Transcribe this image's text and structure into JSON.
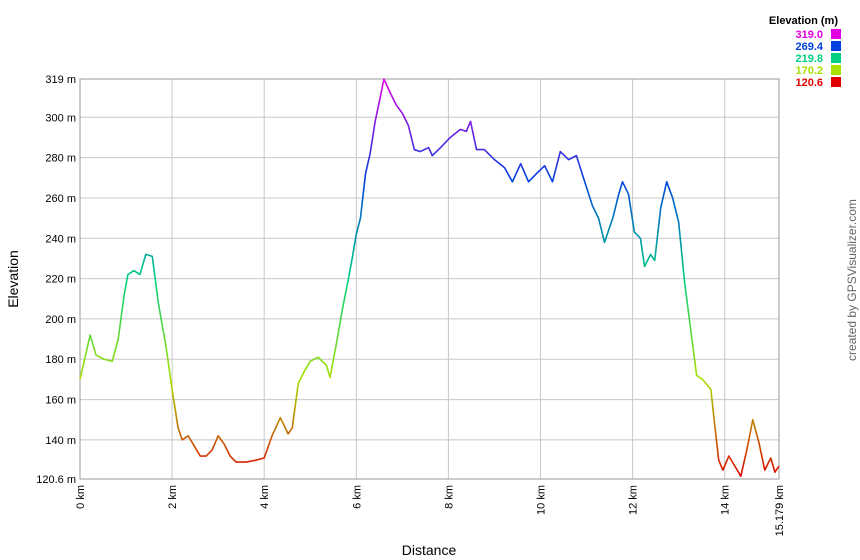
{
  "chart_data": {
    "type": "line",
    "x_label": "Distance",
    "y_label": "Elevation",
    "credit": "created by GPSVisualizer.com",
    "grid": true,
    "xlim": [
      0,
      15.179
    ],
    "ylim": [
      120.6,
      319
    ],
    "xticks": [
      {
        "value": 0,
        "label": "0 km"
      },
      {
        "value": 2,
        "label": "2 km"
      },
      {
        "value": 4,
        "label": "4 km"
      },
      {
        "value": 6,
        "label": "6 km"
      },
      {
        "value": 8,
        "label": "8 km"
      },
      {
        "value": 10,
        "label": "10 km"
      },
      {
        "value": 12,
        "label": "12 km"
      },
      {
        "value": 14,
        "label": "14 km"
      },
      {
        "value": 15.179,
        "label": "15.179 km"
      }
    ],
    "yticks": [
      {
        "value": 120.6,
        "label": "120.6 m"
      },
      {
        "value": 140,
        "label": "140 m"
      },
      {
        "value": 160,
        "label": "160 m"
      },
      {
        "value": 180,
        "label": "180 m"
      },
      {
        "value": 200,
        "label": "200 m"
      },
      {
        "value": 220,
        "label": "220 m"
      },
      {
        "value": 240,
        "label": "240 m"
      },
      {
        "value": 260,
        "label": "260 m"
      },
      {
        "value": 280,
        "label": "280 m"
      },
      {
        "value": 300,
        "label": "300 m"
      },
      {
        "value": 319,
        "label": "319 m"
      }
    ],
    "legend": {
      "title": "Elevation (m)",
      "items": [
        {
          "value": 319,
          "label": "319.0",
          "color": "#e000e0"
        },
        {
          "value": 269.4,
          "label": "269.4",
          "color": "#0040e0"
        },
        {
          "value": 219.8,
          "label": "219.8",
          "color": "#00d080"
        },
        {
          "value": 170.2,
          "label": "170.2",
          "color": "#a8e000"
        },
        {
          "value": 120.6,
          "label": "120.6",
          "color": "#e00000"
        }
      ]
    },
    "x": [
      0,
      0.22,
      0.35,
      0.52,
      0.7,
      0.83,
      0.96,
      1.04,
      1.17,
      1.3,
      1.43,
      1.57,
      1.7,
      1.87,
      2.0,
      2.13,
      2.22,
      2.35,
      2.48,
      2.61,
      2.74,
      2.87,
      3.0,
      3.13,
      3.26,
      3.39,
      3.61,
      3.83,
      4.0,
      4.17,
      4.35,
      4.52,
      4.61,
      4.74,
      4.87,
      5.0,
      5.17,
      5.35,
      5.43,
      5.57,
      5.7,
      5.83,
      5.91,
      6.0,
      6.09,
      6.2,
      6.3,
      6.41,
      6.52,
      6.6,
      6.74,
      6.87,
      7.0,
      7.13,
      7.26,
      7.39,
      7.57,
      7.65,
      7.83,
      8.04,
      8.26,
      8.39,
      8.48,
      8.61,
      8.78,
      9.0,
      9.22,
      9.39,
      9.57,
      9.74,
      9.91,
      10.09,
      10.26,
      10.43,
      10.61,
      10.78,
      10.96,
      11.13,
      11.26,
      11.39,
      11.57,
      11.7,
      11.78,
      11.91,
      12.04,
      12.17,
      12.26,
      12.39,
      12.48,
      12.61,
      12.74,
      12.87,
      13.0,
      13.13,
      13.26,
      13.39,
      13.52,
      13.7,
      13.78,
      13.87,
      13.96,
      14.09,
      14.22,
      14.35,
      14.48,
      14.61,
      14.74,
      14.87,
      15.0,
      15.09,
      15.179
    ],
    "values": [
      170,
      192,
      182,
      180,
      179,
      190,
      212,
      222,
      224,
      222,
      232,
      231,
      208,
      186,
      165,
      146,
      140,
      142,
      137,
      132,
      132,
      135,
      142,
      138,
      132,
      129,
      129,
      130,
      131,
      142,
      151,
      143,
      146,
      168,
      174,
      179,
      181,
      177,
      171,
      188,
      205,
      220,
      230,
      242,
      250,
      272,
      282,
      298,
      310,
      319,
      312,
      306,
      302,
      296,
      284,
      283,
      285,
      281,
      285,
      290,
      294,
      293,
      298,
      284,
      284,
      279,
      275,
      268,
      277,
      268,
      272,
      276,
      268,
      283,
      279,
      281,
      268,
      256,
      250,
      238,
      250,
      262,
      268,
      262,
      243,
      240,
      226,
      232,
      229,
      255,
      268,
      260,
      248,
      218,
      195,
      172,
      170,
      165,
      148,
      130,
      125,
      132,
      127,
      122,
      135,
      150,
      139,
      125,
      131,
      124,
      127
    ]
  }
}
